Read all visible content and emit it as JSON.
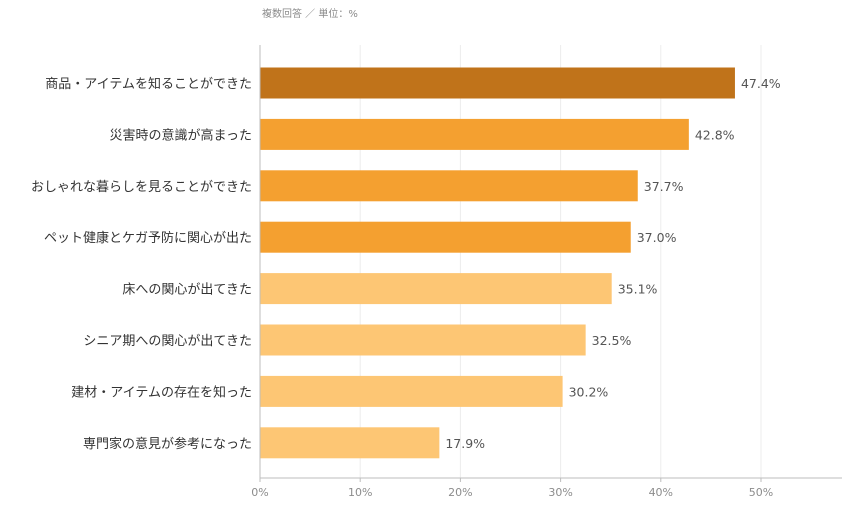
{
  "note": "複数回答 ／ 単位：%",
  "chart_data": {
    "type": "bar",
    "orientation": "horizontal",
    "title": "",
    "xlabel": "",
    "ylabel": "",
    "xlim": [
      0,
      50
    ],
    "grid": true,
    "categories": [
      "商品・アイテムを知ることができた",
      "災害時の意識が高まった",
      "おしゃれな暮らしを見ることができた",
      "ペット健康とケガ予防に関心が出た",
      "床への関心が出てきた",
      "シニア期への関心が出てきた",
      "建材・アイテムの存在を知った",
      "専門家の意見が参考になった"
    ],
    "values": [
      47.4,
      42.8,
      37.7,
      37.0,
      35.1,
      32.5,
      30.2,
      17.9
    ],
    "value_labels": [
      "47.4%",
      "42.8%",
      "37.7%",
      "37.0%",
      "35.1%",
      "32.5%",
      "30.2%",
      "17.9%"
    ],
    "bar_colors": [
      "#c0731a",
      "#f4a030",
      "#f4a030",
      "#f4a030",
      "#fdc674",
      "#fdc674",
      "#fdc674",
      "#fdc674"
    ],
    "tick_values": [
      0,
      10,
      20,
      30,
      40,
      50
    ],
    "tick_labels": [
      "0%",
      "10%",
      "20%",
      "30%",
      "40%",
      "50%"
    ]
  }
}
